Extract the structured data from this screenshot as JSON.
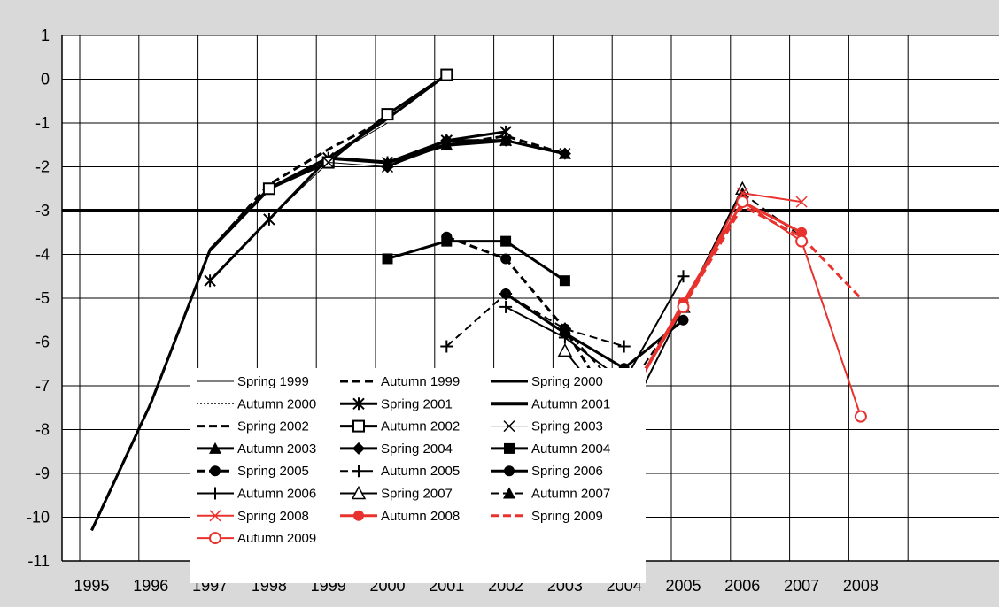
{
  "chart_data": {
    "type": "line",
    "title": "",
    "xlabel": "",
    "ylabel": "",
    "x": [
      1995,
      1996,
      1997,
      1998,
      1999,
      2000,
      2001,
      2002,
      2003,
      2004,
      2005,
      2006,
      2007,
      2008
    ],
    "xlim": [
      1995,
      2008
    ],
    "ylim": [
      -11,
      1
    ],
    "yticks": [
      1,
      0,
      -1,
      -2,
      -3,
      -4,
      -5,
      -6,
      -7,
      -8,
      -9,
      -10,
      -11
    ],
    "grid": true,
    "legend_position": "bottom-center inside plot",
    "reference_line": {
      "y": -3,
      "color": "#000000"
    },
    "colors": {
      "black": "#000000",
      "red": "#e8322e",
      "background": "#d9d9d9",
      "plot_bg": "#ffffff"
    },
    "series": [
      {
        "name": "Spring 1999",
        "color": "#000000",
        "dash": "solid",
        "width": 1,
        "marker": "none",
        "points": [
          [
            1995,
            -10.3
          ],
          [
            1996,
            -7.4
          ],
          [
            1997,
            -3.9
          ],
          [
            1998,
            -2.5
          ],
          [
            1999,
            -1.8
          ],
          [
            2000,
            -1.0
          ]
        ]
      },
      {
        "name": "Autumn 1999",
        "color": "#000000",
        "dash": "dashed",
        "width": 3,
        "marker": "none",
        "points": [
          [
            1995,
            -10.3
          ],
          [
            1996,
            -7.4
          ],
          [
            1997,
            -3.9
          ],
          [
            1998,
            -2.4
          ],
          [
            1999,
            -1.6
          ],
          [
            2000,
            -0.9
          ]
        ]
      },
      {
        "name": "Spring 2000",
        "color": "#000000",
        "dash": "solid",
        "width": 3,
        "marker": "none",
        "points": [
          [
            1995,
            -10.3
          ],
          [
            1996,
            -7.4
          ],
          [
            1997,
            -3.9
          ],
          [
            1998,
            -2.5
          ],
          [
            1999,
            -1.8
          ],
          [
            2000,
            -0.9
          ],
          [
            2001,
            0.1
          ]
        ]
      },
      {
        "name": "Autumn 2000",
        "color": "#000000",
        "dash": "dotted",
        "width": 1,
        "marker": "none",
        "points": [
          [
            1996,
            -7.4
          ],
          [
            1997,
            -3.9
          ],
          [
            1998,
            -2.5
          ],
          [
            1999,
            -1.8
          ],
          [
            2000,
            -0.9
          ],
          [
            2001,
            0.1
          ]
        ]
      },
      {
        "name": "Spring 2001",
        "color": "#000000",
        "dash": "solid",
        "width": 3,
        "marker": "asterisk",
        "points": [
          [
            1997,
            -4.6
          ],
          [
            1998,
            -3.2
          ],
          [
            1999,
            -1.8
          ],
          [
            2000,
            -1.9
          ],
          [
            2001,
            -1.4
          ],
          [
            2002,
            -1.2
          ]
        ]
      },
      {
        "name": "Autumn 2001",
        "color": "#000000",
        "dash": "solid",
        "width": 4,
        "marker": "none",
        "points": [
          [
            1997,
            -3.9
          ],
          [
            1998,
            -2.5
          ],
          [
            1999,
            -1.8
          ],
          [
            2000,
            -1.9
          ],
          [
            2001,
            -1.5
          ],
          [
            2002,
            -1.4
          ]
        ]
      },
      {
        "name": "Spring 2002",
        "color": "#000000",
        "dash": "dashed",
        "width": 3,
        "marker": "none",
        "points": [
          [
            1997,
            -3.9
          ],
          [
            1998,
            -2.5
          ],
          [
            1999,
            -1.8
          ],
          [
            2000,
            -1.9
          ],
          [
            2001,
            -1.5
          ],
          [
            2002,
            -1.3
          ],
          [
            2003,
            -1.7
          ]
        ]
      },
      {
        "name": "Autumn 2002",
        "color": "#000000",
        "dash": "solid",
        "width": 3,
        "marker": "square-open",
        "points": [
          [
            1998,
            -2.5
          ],
          [
            1999,
            -1.9
          ],
          [
            2000,
            -0.8
          ],
          [
            2001,
            0.1
          ]
        ]
      },
      {
        "name": "Spring 2003",
        "color": "#000000",
        "dash": "solid",
        "width": 1,
        "marker": "x",
        "points": [
          [
            1997,
            -4.6
          ],
          [
            1998,
            -3.2
          ],
          [
            1999,
            -1.9
          ],
          [
            2000,
            -2.0
          ],
          [
            2001,
            -1.5
          ],
          [
            2002,
            -1.4
          ],
          [
            2003,
            -1.7
          ]
        ]
      },
      {
        "name": "Autumn 2003",
        "color": "#000000",
        "dash": "solid",
        "width": 3,
        "marker": "triangle",
        "points": [
          [
            2000,
            -1.9
          ],
          [
            2001,
            -1.5
          ],
          [
            2002,
            -1.4
          ],
          [
            2003,
            -1.7
          ]
        ]
      },
      {
        "name": "Spring 2004",
        "color": "#000000",
        "dash": "solid",
        "width": 3,
        "marker": "diamond",
        "points": [
          [
            2000,
            -2.0
          ],
          [
            2001,
            -1.4
          ],
          [
            2002,
            -1.4
          ],
          [
            2003,
            -1.7
          ]
        ]
      },
      {
        "name": "Autumn 2004",
        "color": "#000000",
        "dash": "solid",
        "width": 3,
        "marker": "square",
        "points": [
          [
            2000,
            -4.1
          ],
          [
            2001,
            -3.7
          ],
          [
            2002,
            -3.7
          ],
          [
            2003,
            -4.6
          ]
        ]
      },
      {
        "name": "Spring 2005",
        "color": "#000000",
        "dash": "dashed",
        "width": 3,
        "marker": "circle",
        "points": [
          [
            2001,
            -3.6
          ],
          [
            2002,
            -4.1
          ],
          [
            2003,
            -5.7
          ],
          [
            2004,
            -7.9
          ]
        ]
      },
      {
        "name": "Autumn 2005",
        "color": "#000000",
        "dash": "dashed",
        "width": 2,
        "marker": "plus",
        "points": [
          [
            2001,
            -6.1
          ],
          [
            2002,
            -4.9
          ],
          [
            2003,
            -5.7
          ],
          [
            2004,
            -6.1
          ]
        ]
      },
      {
        "name": "Spring 2006",
        "color": "#000000",
        "dash": "solid",
        "width": 3,
        "marker": "circle",
        "points": [
          [
            2002,
            -4.9
          ],
          [
            2003,
            -5.8
          ],
          [
            2004,
            -6.6
          ],
          [
            2005,
            -5.5
          ]
        ]
      },
      {
        "name": "Autumn 2006",
        "color": "#000000",
        "dash": "solid",
        "width": 2,
        "marker": "plus",
        "points": [
          [
            2002,
            -5.2
          ],
          [
            2003,
            -5.9
          ],
          [
            2004,
            -6.9
          ],
          [
            2005,
            -4.5
          ]
        ]
      },
      {
        "name": "Spring 2007",
        "color": "#000000",
        "dash": "solid",
        "width": 2,
        "marker": "triangle-open",
        "points": [
          [
            2003,
            -6.2
          ],
          [
            2004,
            -7.9
          ],
          [
            2005,
            -5.2
          ],
          [
            2006,
            -2.5
          ]
        ]
      },
      {
        "name": "Autumn 2007",
        "color": "#000000",
        "dash": "dashed",
        "width": 2,
        "marker": "triangle",
        "points": [
          [
            2003,
            -5.7
          ],
          [
            2004,
            -7.2
          ],
          [
            2005,
            -5.2
          ],
          [
            2006,
            -2.6
          ],
          [
            2007,
            -3.6
          ]
        ]
      },
      {
        "name": "Spring 2008",
        "color": "#e8322e",
        "dash": "solid",
        "width": 2,
        "marker": "x",
        "points": [
          [
            2004,
            -7.4
          ],
          [
            2005,
            -5.2
          ],
          [
            2006,
            -2.6
          ],
          [
            2007,
            -2.8
          ]
        ]
      },
      {
        "name": "Autumn 2008",
        "color": "#e8322e",
        "dash": "solid",
        "width": 3,
        "marker": "circle",
        "points": [
          [
            2004,
            -7.5
          ],
          [
            2005,
            -5.1
          ],
          [
            2006,
            -2.8
          ],
          [
            2007,
            -3.5
          ]
        ]
      },
      {
        "name": "Spring 2009",
        "color": "#e8322e",
        "dash": "dashed",
        "width": 3,
        "marker": "none",
        "points": [
          [
            2004,
            -7.4
          ],
          [
            2005,
            -5.2
          ],
          [
            2006,
            -2.9
          ],
          [
            2007,
            -3.6
          ],
          [
            2008,
            -5.0
          ]
        ]
      },
      {
        "name": "Autumn 2009",
        "color": "#e8322e",
        "dash": "solid",
        "width": 2,
        "marker": "circle-open",
        "points": [
          [
            2004,
            -7.5
          ],
          [
            2005,
            -5.2
          ],
          [
            2006,
            -2.8
          ],
          [
            2007,
            -3.7
          ],
          [
            2008,
            -7.7
          ]
        ]
      }
    ]
  }
}
